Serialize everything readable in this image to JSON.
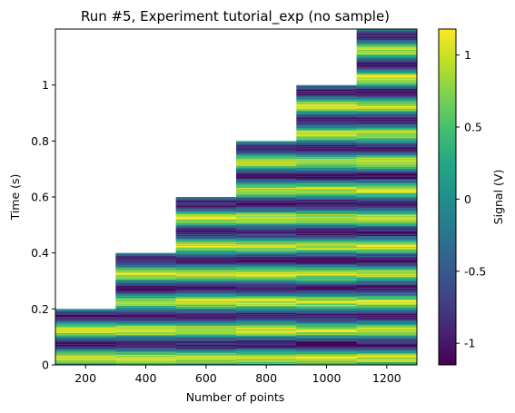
{
  "chart_data": {
    "type": "heatmap",
    "title": "Run #5, Experiment tutorial_exp (no sample)",
    "xlabel": "Number of points",
    "ylabel": "Time (s)",
    "colorbar_label": "Signal (V)",
    "xlim": [
      100,
      1300
    ],
    "ylim": [
      0,
      1.2
    ],
    "x_ticks": [
      200,
      400,
      600,
      800,
      1000,
      1200
    ],
    "y_ticks": [
      0,
      0.2,
      0.4,
      0.6,
      0.8,
      1
    ],
    "y_tick_labels": [
      "0",
      "0.2",
      "0.4",
      "0.6",
      "0.8",
      "1"
    ],
    "colorbar_range": [
      -1.15,
      1.18
    ],
    "colorbar_ticks": [
      -1,
      -0.5,
      0,
      0.5,
      1
    ],
    "colorbar_tick_labels": [
      "-1",
      "-0.5",
      "0",
      "0.5",
      "1"
    ],
    "colormap": "viridis",
    "columns": [
      {
        "x_center": 200,
        "x_range": [
          100,
          300
        ],
        "time_max": 0.2
      },
      {
        "x_center": 400,
        "x_range": [
          300,
          500
        ],
        "time_max": 0.4
      },
      {
        "x_center": 600,
        "x_range": [
          500,
          700
        ],
        "time_max": 0.6
      },
      {
        "x_center": 800,
        "x_range": [
          700,
          900
        ],
        "time_max": 0.8
      },
      {
        "x_center": 1000,
        "x_range": [
          900,
          1100
        ],
        "time_max": 1.0
      },
      {
        "x_center": 1200,
        "x_range": [
          1100,
          1300
        ],
        "time_max": 1.2
      }
    ],
    "signal_model": "sin(2*pi*10*t) plus noise"
  }
}
